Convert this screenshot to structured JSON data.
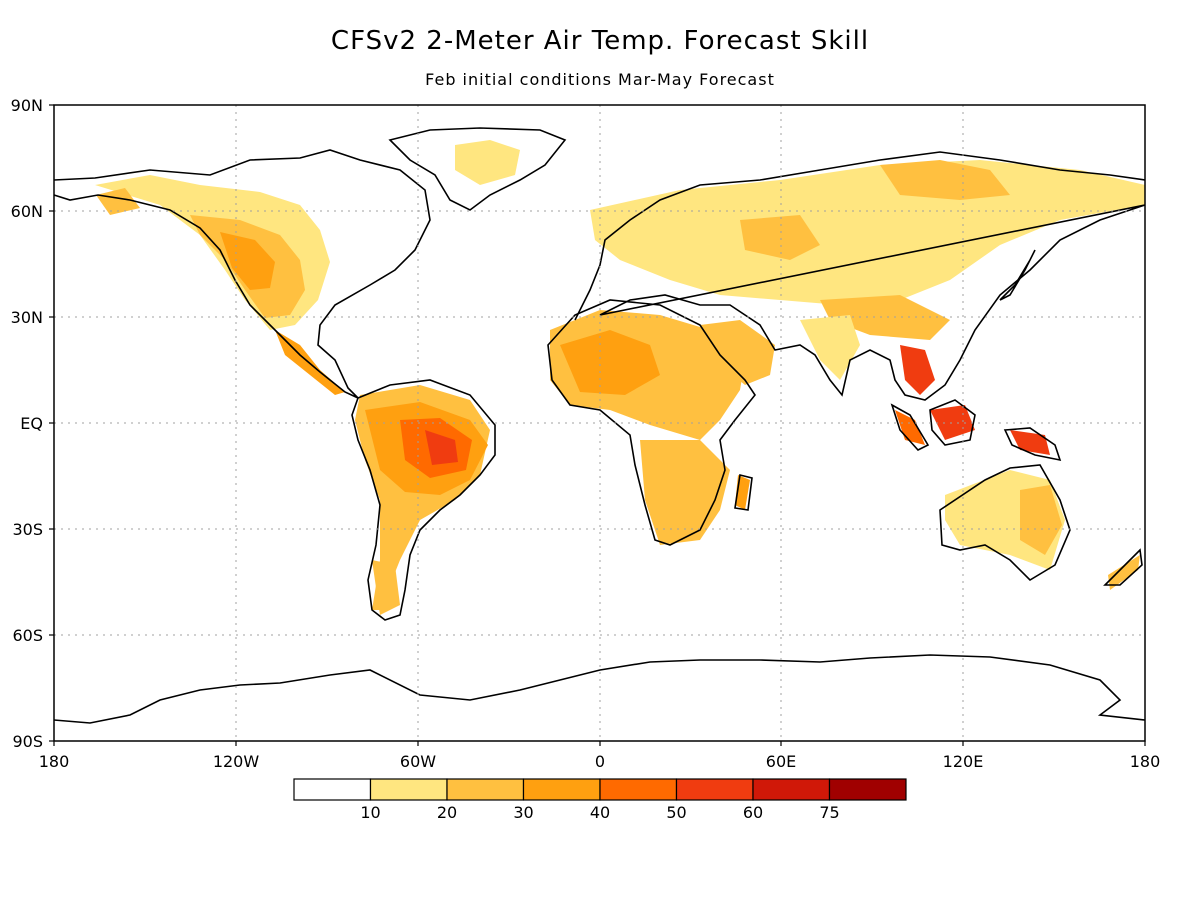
{
  "title": "CFSv2 2-Meter Air Temp. Forecast Skill",
  "subtitle": "Feb initial conditions   Mar-May Forecast",
  "lat_labels": [
    "90N",
    "60N",
    "30N",
    "EQ",
    "30S",
    "60S",
    "90S"
  ],
  "lon_labels": [
    "180",
    "120W",
    "60W",
    "0",
    "60E",
    "120E",
    "180"
  ],
  "colorbar": {
    "colors": [
      "#ffffff",
      "#ffe680",
      "#ffc040",
      "#ffa010",
      "#ff6a00",
      "#f03c10",
      "#d01808",
      "#a00000"
    ],
    "tick_labels": [
      "10",
      "20",
      "30",
      "40",
      "50",
      "60",
      "75"
    ]
  }
}
